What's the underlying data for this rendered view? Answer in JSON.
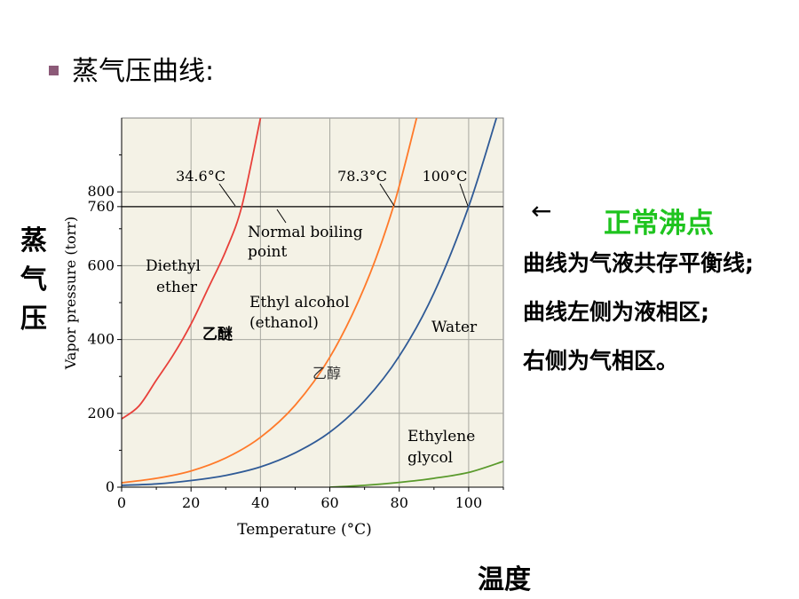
{
  "slide": {
    "title": "蒸气压曲线:",
    "ylabel_cn": [
      "蒸",
      "气",
      "压"
    ],
    "xlabel_cn": "温度",
    "arrow": "←",
    "normal_boiling_point_cn": "正常沸点",
    "notes": [
      "曲线为气液共存平衡线;",
      "曲线左侧为液相区;",
      "右侧为气相区。"
    ],
    "colors": {
      "bullet": "#8c5a78",
      "green_text": "#1fc41f",
      "plot_bg": "#f4f2e6"
    }
  },
  "chart_data": {
    "type": "line",
    "xlabel": "Temperature (°C)",
    "ylabel": "Vapor pressure (torr)",
    "xlim": [
      0,
      110
    ],
    "ylim": [
      0,
      1000
    ],
    "xticks": [
      0,
      20,
      40,
      60,
      80,
      100
    ],
    "yticks": [
      0,
      200,
      400,
      600,
      760,
      800
    ],
    "grid": true,
    "reference_line": {
      "y": 760,
      "label": "Normal boiling point"
    },
    "boiling_point_labels": [
      "34.6°C",
      "78.3°C",
      "100°C"
    ],
    "annotations_cn": [
      "乙醚",
      "乙醇"
    ],
    "series": [
      {
        "name": "Diethyl ether",
        "color": "#e8403a",
        "x": [
          0,
          5,
          10,
          15,
          20,
          25,
          30,
          34.6,
          40
        ],
        "y": [
          185,
          220,
          290,
          360,
          442,
          540,
          640,
          760,
          1000
        ]
      },
      {
        "name": "Ethyl alcohol (ethanol)",
        "color": "#ff7a2a",
        "x": [
          0,
          10,
          20,
          30,
          40,
          50,
          60,
          70,
          78.3,
          85
        ],
        "y": [
          12,
          24,
          44,
          79,
          135,
          222,
          352,
          542,
          760,
          1000
        ]
      },
      {
        "name": "Water",
        "color": "#2f5a96",
        "x": [
          0,
          10,
          20,
          30,
          40,
          50,
          60,
          70,
          80,
          90,
          100,
          108
        ],
        "y": [
          5,
          9,
          18,
          32,
          55,
          93,
          149,
          234,
          355,
          526,
          760,
          1000
        ]
      },
      {
        "name": "Ethylene glycol",
        "color": "#5a9a2c",
        "x": [
          60,
          70,
          80,
          90,
          100,
          110
        ],
        "y": [
          0,
          5,
          13,
          24,
          40,
          70
        ]
      }
    ],
    "series_labels": [
      "Diethyl",
      "ether",
      "Ethyl alcohol",
      "(ethanol)",
      "Water",
      "Ethylene",
      "glycol"
    ]
  }
}
